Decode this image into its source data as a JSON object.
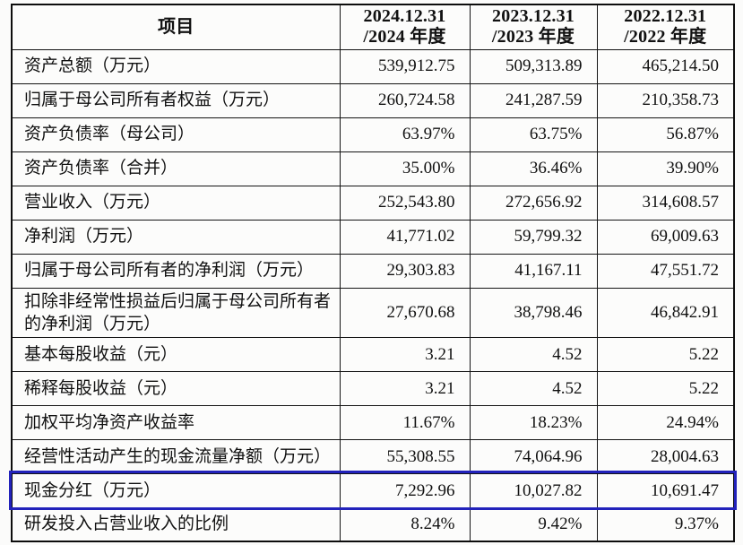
{
  "table": {
    "highlight_color": "#2222bb",
    "header": {
      "item_label": "项目",
      "periods": [
        {
          "line1": "2024.12.31",
          "line2": "/2024 年度"
        },
        {
          "line1": "2023.12.31",
          "line2": "/2023 年度"
        },
        {
          "line1": "2022.12.31",
          "line2": "/2022 年度"
        }
      ]
    },
    "rows": [
      {
        "label": "资产总额（万元）",
        "values": [
          "539,912.75",
          "509,313.89",
          "465,214.50"
        ],
        "highlighted": false,
        "tall": false
      },
      {
        "label": "归属于母公司所有者权益（万元）",
        "values": [
          "260,724.58",
          "241,287.59",
          "210,358.73"
        ],
        "highlighted": false,
        "tall": false
      },
      {
        "label": "资产负债率（母公司）",
        "values": [
          "63.97%",
          "63.75%",
          "56.87%"
        ],
        "highlighted": false,
        "tall": false
      },
      {
        "label": "资产负债率（合并）",
        "values": [
          "35.00%",
          "36.46%",
          "39.90%"
        ],
        "highlighted": false,
        "tall": false
      },
      {
        "label": "营业收入（万元）",
        "values": [
          "252,543.80",
          "272,656.92",
          "314,608.57"
        ],
        "highlighted": false,
        "tall": false
      },
      {
        "label": "净利润（万元）",
        "values": [
          "41,771.02",
          "59,799.32",
          "69,009.63"
        ],
        "highlighted": false,
        "tall": false
      },
      {
        "label": "归属于母公司所有者的净利润（万元）",
        "values": [
          "29,303.83",
          "41,167.11",
          "47,551.72"
        ],
        "highlighted": false,
        "tall": false
      },
      {
        "label": "扣除非经常性损益后归属于母公司所有者的净利润（万元）",
        "values": [
          "27,670.68",
          "38,798.46",
          "46,842.91"
        ],
        "highlighted": false,
        "tall": true
      },
      {
        "label": "基本每股收益（元）",
        "values": [
          "3.21",
          "4.52",
          "5.22"
        ],
        "highlighted": false,
        "tall": false
      },
      {
        "label": "稀释每股收益（元）",
        "values": [
          "3.21",
          "4.52",
          "5.22"
        ],
        "highlighted": false,
        "tall": false
      },
      {
        "label": "加权平均净资产收益率",
        "values": [
          "11.67%",
          "18.23%",
          "24.94%"
        ],
        "highlighted": false,
        "tall": false
      },
      {
        "label": "经营性活动产生的现金流量净额（万元）",
        "values": [
          "55,308.55",
          "74,064.96",
          "28,004.63"
        ],
        "highlighted": false,
        "tall": false
      },
      {
        "label": "现金分红（万元）",
        "values": [
          "7,292.96",
          "10,027.82",
          "10,691.47"
        ],
        "highlighted": true,
        "tall": false
      },
      {
        "label": "研发投入占营业收入的比例",
        "values": [
          "8.24%",
          "9.42%",
          "9.37%"
        ],
        "highlighted": false,
        "tall": false
      }
    ]
  }
}
